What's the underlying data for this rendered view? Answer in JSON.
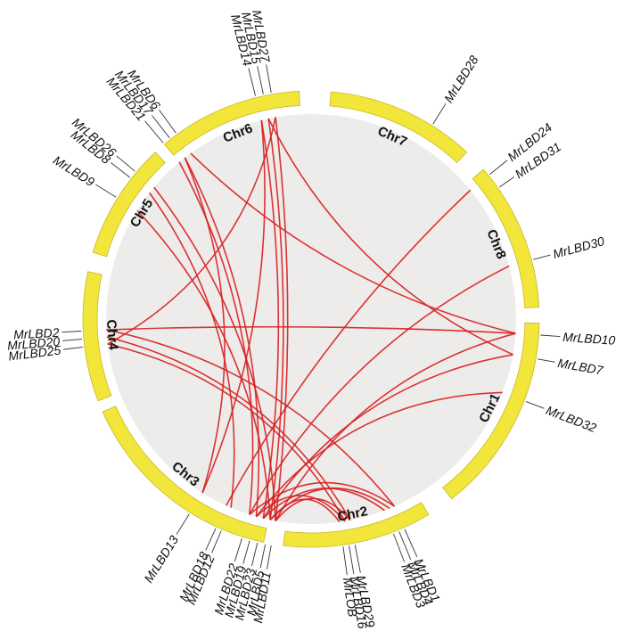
{
  "colors": {
    "chromosome": "#f2e63a",
    "chromosome_edge": "#c9b62a",
    "ribbon": "#d71f1f",
    "background": "#eeebeb",
    "tick": "#333333"
  },
  "chromosomes": [
    {
      "id": "chr7",
      "label": "Chr7"
    },
    {
      "id": "chr8",
      "label": "Chr8"
    },
    {
      "id": "chr1",
      "label": "Chr1"
    },
    {
      "id": "chr2",
      "label": "Chr2"
    },
    {
      "id": "chr3",
      "label": "Chr3"
    },
    {
      "id": "chr4",
      "label": "Chr4"
    },
    {
      "id": "chr5",
      "label": "Chr5"
    },
    {
      "id": "chr6",
      "label": "Chr6"
    }
  ],
  "genes": [
    {
      "name": "MrLBD28",
      "chr": "chr7"
    },
    {
      "name": "MrLBD24",
      "chr": "chr8"
    },
    {
      "name": "MrLBD31",
      "chr": "chr8"
    },
    {
      "name": "MrLBD30",
      "chr": "chr8"
    },
    {
      "name": "MrLBD10",
      "chr": "chr1"
    },
    {
      "name": "MrLBD7",
      "chr": "chr1"
    },
    {
      "name": "MrLBD32",
      "chr": "chr1"
    },
    {
      "name": "MrLBD1",
      "chr": "chr2"
    },
    {
      "name": "MrLBD4",
      "chr": "chr2"
    },
    {
      "name": "MrLBD3",
      "chr": "chr2"
    },
    {
      "name": "MrLBD29",
      "chr": "chr2"
    },
    {
      "name": "MrLBD16",
      "chr": "chr2"
    },
    {
      "name": "MrLOB",
      "chr": "chr2"
    },
    {
      "name": "MrLBD11",
      "chr": "chr3"
    },
    {
      "name": "MrLBD5",
      "chr": "chr3"
    },
    {
      "name": "MrLBD23",
      "chr": "chr3"
    },
    {
      "name": "MrLBD19",
      "chr": "chr3"
    },
    {
      "name": "MrLBD22",
      "chr": "chr3"
    },
    {
      "name": "MrLBD12",
      "chr": "chr3"
    },
    {
      "name": "MrLBD18",
      "chr": "chr3"
    },
    {
      "name": "MrLBD13",
      "chr": "chr3"
    },
    {
      "name": "MrLBD25",
      "chr": "chr4"
    },
    {
      "name": "MrLBD20",
      "chr": "chr4"
    },
    {
      "name": "MrLBD2",
      "chr": "chr4"
    },
    {
      "name": "MrLBD9",
      "chr": "chr5"
    },
    {
      "name": "MrLBD8",
      "chr": "chr5"
    },
    {
      "name": "MrLBD26",
      "chr": "chr5"
    },
    {
      "name": "MrLBD21",
      "chr": "chr6"
    },
    {
      "name": "MrLBD17",
      "chr": "chr6"
    },
    {
      "name": "MrLBD6",
      "chr": "chr6"
    },
    {
      "name": "MrLBD14",
      "chr": "chr6"
    },
    {
      "name": "MrLBD15",
      "chr": "chr6"
    },
    {
      "name": "MrLBD27",
      "chr": "chr6"
    }
  ],
  "links": [
    [
      "MrLBD27",
      "MrLBD11"
    ],
    [
      "MrLBD15",
      "MrLBD5"
    ],
    [
      "MrLBD14",
      "MrLBD23"
    ],
    [
      "MrLBD6",
      "MrLBD10"
    ],
    [
      "MrLBD17",
      "MrLBD19"
    ],
    [
      "MrLBD21",
      "MrLBD22"
    ],
    [
      "MrLBD27",
      "MrLBD25"
    ],
    [
      "MrLBD15",
      "MrLBD7"
    ],
    [
      "MrLBD30",
      "MrLBD22"
    ],
    [
      "MrLBD24",
      "MrLBD18"
    ],
    [
      "MrLBD2",
      "MrLBD10"
    ],
    [
      "MrLBD20",
      "MrLBD29"
    ],
    [
      "MrLBD25",
      "MrLBD16"
    ],
    [
      "MrLBD9",
      "MrLBD5"
    ],
    [
      "MrLBD8",
      "MrLBD12"
    ],
    [
      "MrLBD13",
      "MrLBD14"
    ],
    [
      "MrLBD10",
      "MrLBD11"
    ],
    [
      "MrLBD7",
      "MrLBD23"
    ],
    [
      "MrLBD32",
      "MrLBD19"
    ],
    [
      "MrLBD4",
      "MrLBD5"
    ],
    [
      "MrLBD1",
      "MrLBD22"
    ],
    [
      "MrLBD3",
      "MrLBD23"
    ],
    [
      "MrLBD29",
      "MrLBD11"
    ],
    [
      "MrLBD16",
      "MrLBD19"
    ],
    [
      "MrLOB",
      "MrLBD5"
    ],
    [
      "MrLBD2",
      "MrLBD1"
    ],
    [
      "MrLBD26",
      "MrLBD11"
    ],
    [
      "MrLBD17",
      "MrLBD13"
    ]
  ]
}
